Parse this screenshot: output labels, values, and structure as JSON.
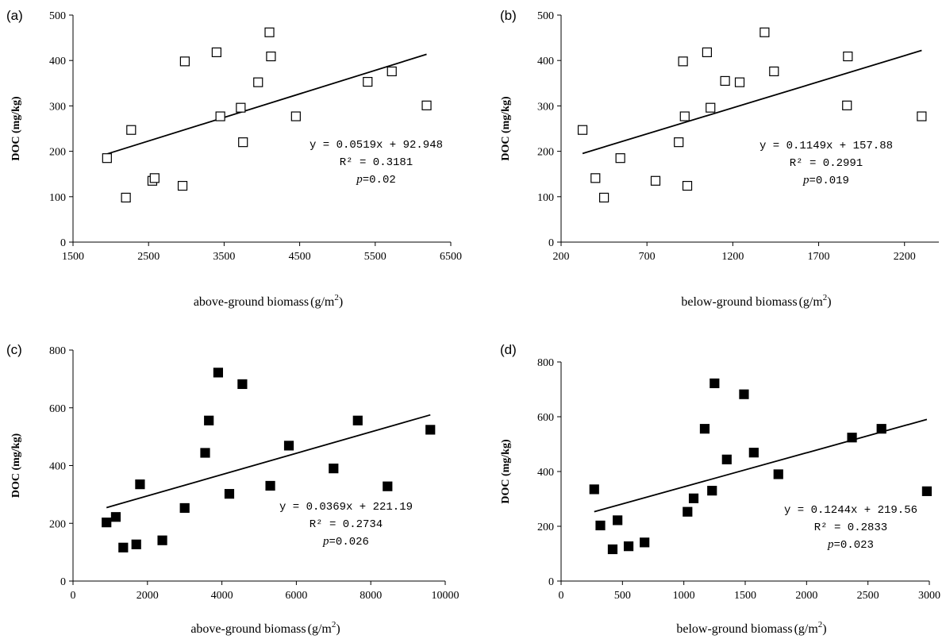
{
  "chart_data": [
    {
      "type": "scatter",
      "panel_label": "(a)",
      "xlabel": "above-ground biomass",
      "xunit_base": "(g/m",
      "xunit_sup": "2",
      "xunit_close": ")",
      "ylabel": "DOC (mg/kg)",
      "xlim": [
        1500,
        6500
      ],
      "ylim": [
        0,
        500
      ],
      "xticks": [
        1500,
        2500,
        3500,
        4500,
        5500,
        6500
      ],
      "yticks": [
        0,
        100,
        200,
        300,
        400,
        500
      ],
      "marker": "open-square",
      "points": [
        {
          "x": 1950,
          "y": 185
        },
        {
          "x": 2200,
          "y": 98
        },
        {
          "x": 2270,
          "y": 247
        },
        {
          "x": 2550,
          "y": 135
        },
        {
          "x": 2580,
          "y": 141
        },
        {
          "x": 2950,
          "y": 124
        },
        {
          "x": 2980,
          "y": 398
        },
        {
          "x": 3400,
          "y": 418
        },
        {
          "x": 3450,
          "y": 277
        },
        {
          "x": 3720,
          "y": 296
        },
        {
          "x": 3750,
          "y": 220
        },
        {
          "x": 3950,
          "y": 352
        },
        {
          "x": 4100,
          "y": 462
        },
        {
          "x": 4120,
          "y": 409
        },
        {
          "x": 4450,
          "y": 277
        },
        {
          "x": 5400,
          "y": 353
        },
        {
          "x": 5720,
          "y": 376
        },
        {
          "x": 6180,
          "y": 301
        }
      ],
      "trendline": {
        "slope": 0.0519,
        "intercept": 92.948,
        "x_start": 1950,
        "x_end": 6180
      },
      "equation": "y = 0.0519x + 92.948",
      "r2": "R² = 0.3181",
      "p_label": "p",
      "p_value": "=0.02"
    },
    {
      "type": "scatter",
      "panel_label": "(b)",
      "xlabel": "below-ground biomass",
      "xunit_base": "(g/m",
      "xunit_sup": "2",
      "xunit_close": ")",
      "ylabel": "DOC (mg/kg)",
      "xlim": [
        200,
        2400
      ],
      "ylim": [
        0,
        500
      ],
      "xticks": [
        200,
        700,
        1200,
        1700,
        2200
      ],
      "yticks": [
        0,
        100,
        200,
        300,
        400,
        500
      ],
      "marker": "open-square",
      "points": [
        {
          "x": 325,
          "y": 247
        },
        {
          "x": 400,
          "y": 141
        },
        {
          "x": 450,
          "y": 98
        },
        {
          "x": 545,
          "y": 185
        },
        {
          "x": 750,
          "y": 135
        },
        {
          "x": 885,
          "y": 220
        },
        {
          "x": 910,
          "y": 398
        },
        {
          "x": 920,
          "y": 277
        },
        {
          "x": 935,
          "y": 124
        },
        {
          "x": 1050,
          "y": 418
        },
        {
          "x": 1070,
          "y": 296
        },
        {
          "x": 1155,
          "y": 355
        },
        {
          "x": 1240,
          "y": 352
        },
        {
          "x": 1385,
          "y": 462
        },
        {
          "x": 1440,
          "y": 376
        },
        {
          "x": 1870,
          "y": 409
        },
        {
          "x": 1865,
          "y": 301
        },
        {
          "x": 2300,
          "y": 277
        }
      ],
      "trendline": {
        "slope": 0.1149,
        "intercept": 157.88,
        "x_start": 325,
        "x_end": 2300
      },
      "equation": "y = 0.1149x + 157.88",
      "r2": "R² = 0.2991",
      "p_label": "p",
      "p_value": "=0.019"
    },
    {
      "type": "scatter",
      "panel_label": "(c)",
      "xlabel": "above-ground biomass",
      "xunit_base": "(g/m",
      "xunit_sup": "2",
      "xunit_close": ")",
      "ylabel": "DOC (mg/kg)",
      "xlim": [
        0,
        10000
      ],
      "ylim": [
        0,
        800
      ],
      "xticks": [
        0,
        2000,
        4000,
        6000,
        8000,
        10000
      ],
      "yticks": [
        0,
        200,
        400,
        600,
        800
      ],
      "marker": "filled-square",
      "points": [
        {
          "x": 900,
          "y": 203
        },
        {
          "x": 1150,
          "y": 222
        },
        {
          "x": 1350,
          "y": 116
        },
        {
          "x": 1700,
          "y": 127
        },
        {
          "x": 1800,
          "y": 335
        },
        {
          "x": 2400,
          "y": 141
        },
        {
          "x": 3000,
          "y": 253
        },
        {
          "x": 3550,
          "y": 444
        },
        {
          "x": 3650,
          "y": 556
        },
        {
          "x": 3900,
          "y": 722
        },
        {
          "x": 4200,
          "y": 302
        },
        {
          "x": 4550,
          "y": 682
        },
        {
          "x": 5300,
          "y": 330
        },
        {
          "x": 5800,
          "y": 469
        },
        {
          "x": 7000,
          "y": 390
        },
        {
          "x": 7650,
          "y": 556
        },
        {
          "x": 8450,
          "y": 328
        },
        {
          "x": 9600,
          "y": 524
        }
      ],
      "trendline": {
        "slope": 0.0369,
        "intercept": 221.19,
        "x_start": 900,
        "x_end": 9600
      },
      "equation": "y = 0.0369x + 221.19",
      "r2": "R² = 0.2734",
      "p_label": "p",
      "p_value": "=0.026"
    },
    {
      "type": "scatter",
      "panel_label": "(d)",
      "xlabel": "below-ground biomass",
      "xunit_base": "(g/m",
      "xunit_sup": "2",
      "xunit_close": ")",
      "ylabel": "DOC (mg/kg)",
      "xlim": [
        0,
        3000
      ],
      "ylim": [
        0,
        800
      ],
      "xticks": [
        0,
        500,
        1000,
        1500,
        2000,
        2500,
        3000
      ],
      "yticks": [
        0,
        200,
        400,
        600,
        800
      ],
      "marker": "filled-square",
      "points": [
        {
          "x": 270,
          "y": 335
        },
        {
          "x": 320,
          "y": 203
        },
        {
          "x": 420,
          "y": 116
        },
        {
          "x": 460,
          "y": 222
        },
        {
          "x": 550,
          "y": 127
        },
        {
          "x": 680,
          "y": 141
        },
        {
          "x": 1030,
          "y": 253
        },
        {
          "x": 1080,
          "y": 302
        },
        {
          "x": 1170,
          "y": 556
        },
        {
          "x": 1230,
          "y": 330
        },
        {
          "x": 1250,
          "y": 722
        },
        {
          "x": 1350,
          "y": 444
        },
        {
          "x": 1490,
          "y": 682
        },
        {
          "x": 1570,
          "y": 469
        },
        {
          "x": 1770,
          "y": 390
        },
        {
          "x": 2370,
          "y": 524
        },
        {
          "x": 2610,
          "y": 556
        },
        {
          "x": 2980,
          "y": 328
        }
      ],
      "trendline": {
        "slope": 0.1244,
        "intercept": 219.56,
        "x_start": 270,
        "x_end": 2980
      },
      "equation": "y = 0.1244x + 219.56",
      "r2": "R² = 0.2833",
      "p_label": "p",
      "p_value": "=0.023"
    }
  ]
}
